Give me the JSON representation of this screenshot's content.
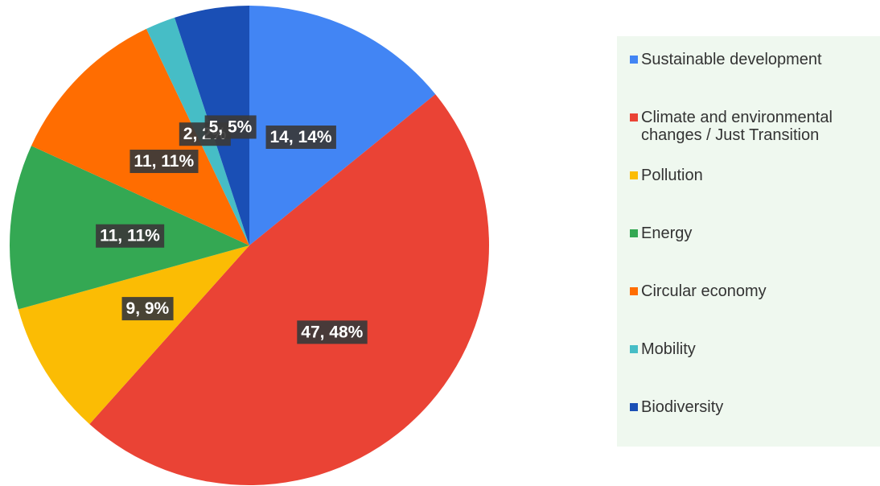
{
  "chart_data": {
    "type": "pie",
    "categories": [
      "Sustainable development",
      "Climate and environmental changes / Just Transition",
      "Pollution",
      "Energy",
      "Circular economy",
      "Mobility",
      "Biodiversity"
    ],
    "values": [
      14,
      47,
      9,
      11,
      11,
      2,
      5
    ],
    "value_labels": [
      "14, 14%",
      "47, 48%",
      "9, 9%",
      "11, 11%",
      "11, 11%",
      "2, 2%",
      "5, 5%"
    ],
    "colors": [
      "#4285f4",
      "#ea4335",
      "#fbbc04",
      "#34a853",
      "#ff6d01",
      "#46bdc6",
      "#1a4fb5"
    ],
    "legend": "right"
  }
}
